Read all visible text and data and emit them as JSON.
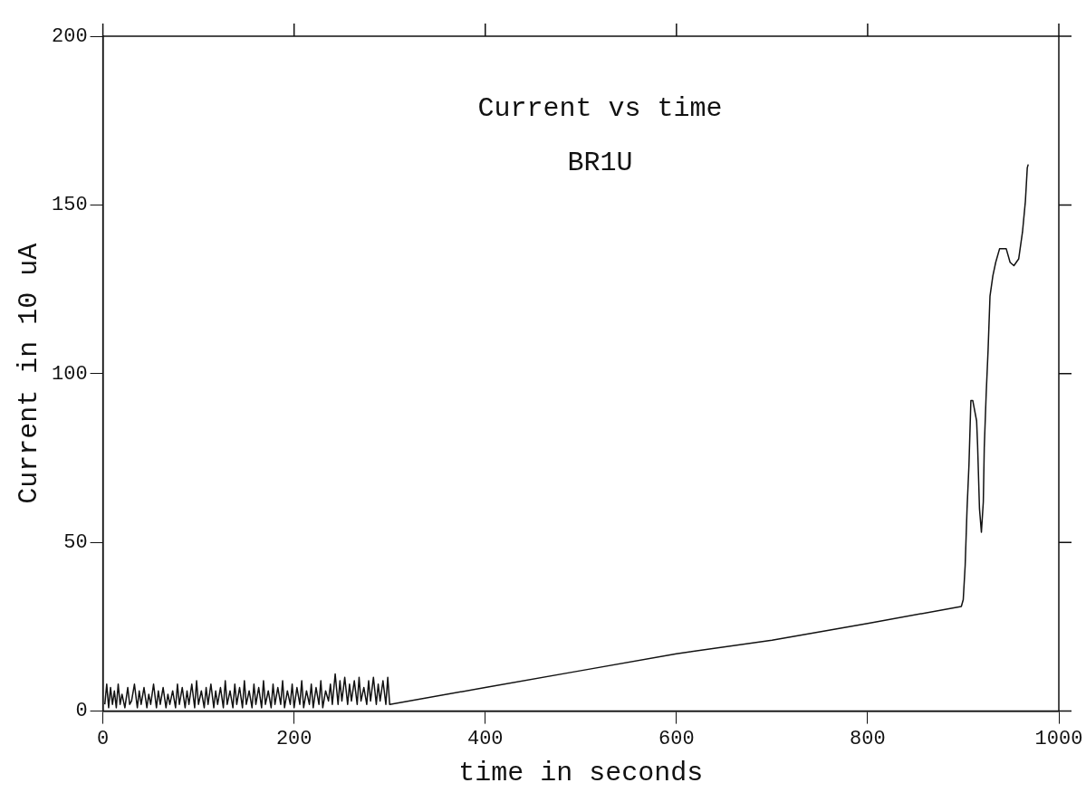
{
  "chart_data": {
    "type": "line",
    "title": "Current vs time",
    "subtitle": "BR1U",
    "xlabel": "time in seconds",
    "ylabel": "Current in 10 uA",
    "xlim": [
      0,
      1000
    ],
    "ylim": [
      0,
      200
    ],
    "xticks": [
      0,
      200,
      400,
      600,
      800,
      1000
    ],
    "yticks": [
      0,
      50,
      100,
      150,
      200
    ],
    "grid": false,
    "legend": false,
    "marker": "none",
    "line_style": "solid",
    "series": [
      {
        "color": "#111111",
        "x": [
          2,
          4,
          6,
          8,
          10,
          12,
          14,
          16,
          18,
          20,
          23,
          26,
          28,
          30,
          33,
          36,
          38,
          40,
          43,
          46,
          48,
          50,
          53,
          56,
          58,
          60,
          63,
          66,
          68,
          70,
          73,
          76,
          78,
          80,
          83,
          86,
          88,
          90,
          93,
          96,
          98,
          100,
          103,
          106,
          108,
          110,
          113,
          116,
          118,
          120,
          123,
          126,
          128,
          130,
          133,
          136,
          138,
          140,
          143,
          146,
          148,
          150,
          153,
          156,
          158,
          160,
          163,
          166,
          168,
          170,
          173,
          176,
          178,
          180,
          183,
          186,
          188,
          190,
          193,
          196,
          198,
          200,
          203,
          206,
          208,
          210,
          213,
          216,
          218,
          220,
          223,
          226,
          228,
          230,
          233,
          236,
          238,
          240,
          243,
          246,
          248,
          250,
          253,
          256,
          258,
          260,
          263,
          266,
          268,
          270,
          273,
          276,
          278,
          280,
          283,
          286,
          288,
          290,
          293,
          296,
          298,
          300,
          400,
          500,
          600,
          700,
          800,
          898,
          900,
          902,
          904,
          906,
          908,
          910,
          914,
          915,
          917,
          919,
          921,
          922,
          924,
          926,
          928,
          931,
          934,
          938,
          945,
          949,
          953,
          958,
          962,
          965,
          967,
          968
        ],
        "values": [
          2,
          8,
          1,
          7,
          2,
          6,
          1,
          8,
          2,
          5,
          1,
          7,
          2,
          3,
          8,
          1,
          6,
          2,
          7,
          1,
          5,
          2,
          8,
          1,
          6,
          2,
          7,
          1,
          5,
          2,
          6,
          1,
          8,
          2,
          7,
          1,
          6,
          2,
          8,
          1,
          9,
          2,
          6,
          1,
          7,
          2,
          8,
          1,
          6,
          2,
          7,
          1,
          9,
          2,
          6,
          1,
          8,
          2,
          7,
          1,
          9,
          2,
          6,
          1,
          8,
          2,
          7,
          1,
          9,
          2,
          6,
          1,
          8,
          2,
          7,
          2,
          9,
          1,
          6,
          2,
          8,
          1,
          7,
          2,
          9,
          1,
          6,
          2,
          8,
          1,
          7,
          2,
          9,
          1,
          6,
          3,
          8,
          2,
          11,
          2,
          9,
          3,
          10,
          2,
          8,
          3,
          9,
          2,
          10,
          3,
          7,
          2,
          9,
          3,
          10,
          2,
          8,
          3,
          9,
          2,
          10,
          2,
          7,
          12,
          17,
          21,
          26,
          31,
          33,
          43,
          60,
          73,
          92,
          92,
          86,
          79,
          60,
          53,
          62,
          78,
          94,
          107,
          123,
          129,
          133,
          137,
          137,
          133,
          132,
          134,
          142,
          151,
          161,
          162
        ]
      }
    ]
  }
}
